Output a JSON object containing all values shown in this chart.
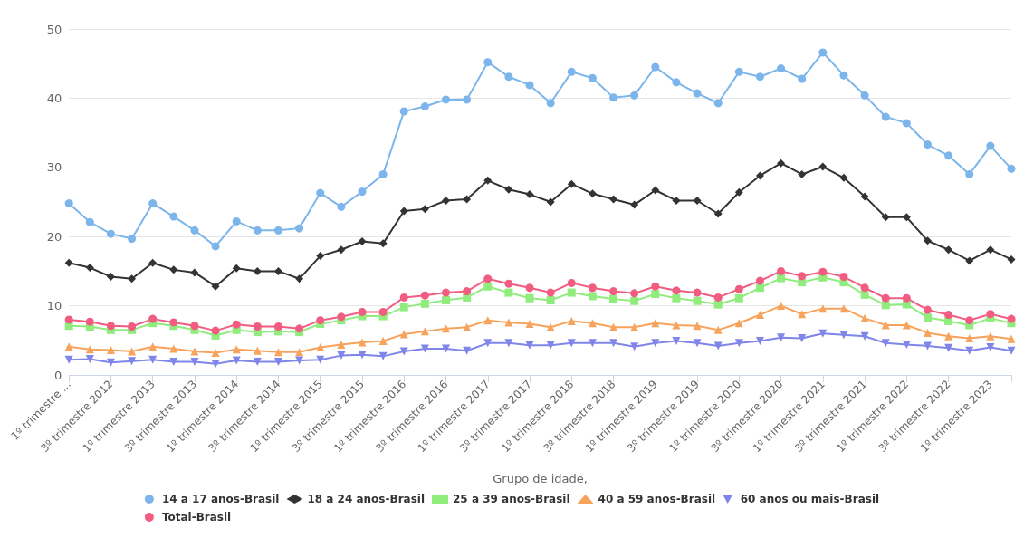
{
  "chart_data": {
    "type": "line",
    "xlabel": "Grupo de idade,",
    "categories": [
      "1º trimestre ...",
      null,
      "3º trimestre 2012",
      null,
      "1º trimestre 2013",
      null,
      "3º trimestre 2013",
      null,
      "1º trimestre 2014",
      null,
      "3º trimestre 2014",
      null,
      "1º trimestre 2015",
      null,
      "3º trimestre 2015",
      null,
      "1º trimestre 2016",
      null,
      "3º trimestre 2016",
      null,
      "1º trimestre 2017",
      null,
      "3º trimestre 2017",
      null,
      "1º trimestre 2018",
      null,
      "3º trimestre 2018",
      null,
      "1º trimestre 2019",
      null,
      "3º trimestre 2019",
      null,
      "1º trimestre 2020",
      null,
      "3º trimestre 2020",
      null,
      "1º trimestre 2021",
      null,
      "3º trimestre 2021",
      null,
      "1º trimestre 2022",
      null,
      "3º trimestre 2022",
      null,
      "1º trimestre 2023",
      null
    ],
    "series": [
      {
        "name": "14 a 17 anos-Brasil",
        "color": "#7cb5ec",
        "marker": "circle",
        "values": [
          24.8,
          22.1,
          20.4,
          19.7,
          24.8,
          22.9,
          20.9,
          18.6,
          22.2,
          20.9,
          20.9,
          21.2,
          26.3,
          24.3,
          26.5,
          29.0,
          38.1,
          38.8,
          39.8,
          39.8,
          45.2,
          43.1,
          41.9,
          39.3,
          43.8,
          42.9,
          40.1,
          40.4,
          44.5,
          42.3,
          40.7,
          39.3,
          43.8,
          43.1,
          44.3,
          42.8,
          46.6,
          43.3,
          40.4,
          37.3,
          36.4,
          33.3,
          31.7,
          29.0,
          33.1,
          29.8
        ]
      },
      {
        "name": "18 a 24 anos-Brasil",
        "color": "#333333",
        "marker": "diamond",
        "values": [
          16.2,
          15.5,
          14.2,
          13.9,
          16.2,
          15.2,
          14.8,
          12.8,
          15.4,
          15.0,
          15.0,
          13.9,
          17.2,
          18.1,
          19.3,
          19.0,
          23.7,
          24.0,
          25.2,
          25.4,
          28.1,
          26.8,
          26.1,
          25.0,
          27.6,
          26.2,
          25.4,
          24.6,
          26.7,
          25.2,
          25.2,
          23.3,
          26.4,
          28.8,
          30.6,
          29.0,
          30.1,
          28.5,
          25.8,
          22.8,
          22.8,
          19.4,
          18.1,
          16.5,
          18.1,
          16.7
        ]
      },
      {
        "name": "25 a 39 anos-Brasil",
        "color": "#90ed7d",
        "marker": "square",
        "values": [
          7.1,
          7.0,
          6.5,
          6.5,
          7.5,
          7.1,
          6.5,
          5.7,
          6.5,
          6.2,
          6.3,
          6.2,
          7.4,
          7.9,
          8.5,
          8.5,
          9.8,
          10.3,
          10.8,
          11.2,
          12.8,
          11.9,
          11.1,
          10.8,
          11.9,
          11.4,
          11.0,
          10.7,
          11.7,
          11.1,
          10.7,
          10.2,
          11.1,
          12.6,
          14.0,
          13.4,
          14.1,
          13.4,
          11.6,
          10.1,
          10.2,
          8.3,
          7.8,
          7.2,
          8.2,
          7.5
        ]
      },
      {
        "name": "40 a 59 anos-Brasil",
        "color": "#f7a35c",
        "marker": "triangle",
        "values": [
          4.1,
          3.7,
          3.6,
          3.4,
          4.1,
          3.8,
          3.4,
          3.2,
          3.7,
          3.5,
          3.3,
          3.3,
          4.0,
          4.4,
          4.7,
          4.9,
          5.9,
          6.3,
          6.7,
          6.9,
          7.9,
          7.6,
          7.4,
          6.9,
          7.8,
          7.5,
          6.9,
          6.9,
          7.5,
          7.2,
          7.1,
          6.5,
          7.5,
          8.7,
          10.0,
          8.8,
          9.6,
          9.6,
          8.2,
          7.2,
          7.2,
          6.1,
          5.6,
          5.3,
          5.6,
          5.2
        ]
      },
      {
        "name": "60 anos ou mais-Brasil",
        "color": "#8085e9",
        "marker": "triangle-down",
        "values": [
          2.2,
          2.3,
          1.8,
          2.0,
          2.2,
          1.9,
          1.9,
          1.6,
          2.1,
          1.9,
          1.9,
          2.1,
          2.2,
          2.8,
          2.9,
          2.7,
          3.4,
          3.8,
          3.8,
          3.5,
          4.6,
          4.6,
          4.3,
          4.3,
          4.6,
          4.6,
          4.6,
          4.1,
          4.6,
          4.9,
          4.6,
          4.2,
          4.6,
          4.9,
          5.4,
          5.3,
          6.0,
          5.8,
          5.6,
          4.6,
          4.4,
          4.2,
          3.9,
          3.5,
          4.0,
          3.5
        ]
      },
      {
        "name": "Total-Brasil",
        "color": "#f15c80",
        "marker": "circle",
        "values": [
          8.0,
          7.7,
          7.1,
          7.0,
          8.1,
          7.6,
          7.1,
          6.4,
          7.3,
          7.0,
          7.0,
          6.7,
          7.9,
          8.4,
          9.1,
          9.1,
          11.2,
          11.5,
          11.9,
          12.1,
          13.9,
          13.2,
          12.6,
          11.9,
          13.3,
          12.6,
          12.1,
          11.8,
          12.8,
          12.2,
          11.9,
          11.2,
          12.4,
          13.6,
          15.0,
          14.3,
          14.9,
          14.2,
          12.6,
          11.1,
          11.1,
          9.4,
          8.7,
          7.9,
          8.8,
          8.1
        ]
      }
    ],
    "ylim": [
      0,
      50
    ],
    "yticks": [
      0,
      10,
      20,
      30,
      40,
      50
    ],
    "grid": "y",
    "legend": "bottom",
    "line_style": "solid"
  }
}
